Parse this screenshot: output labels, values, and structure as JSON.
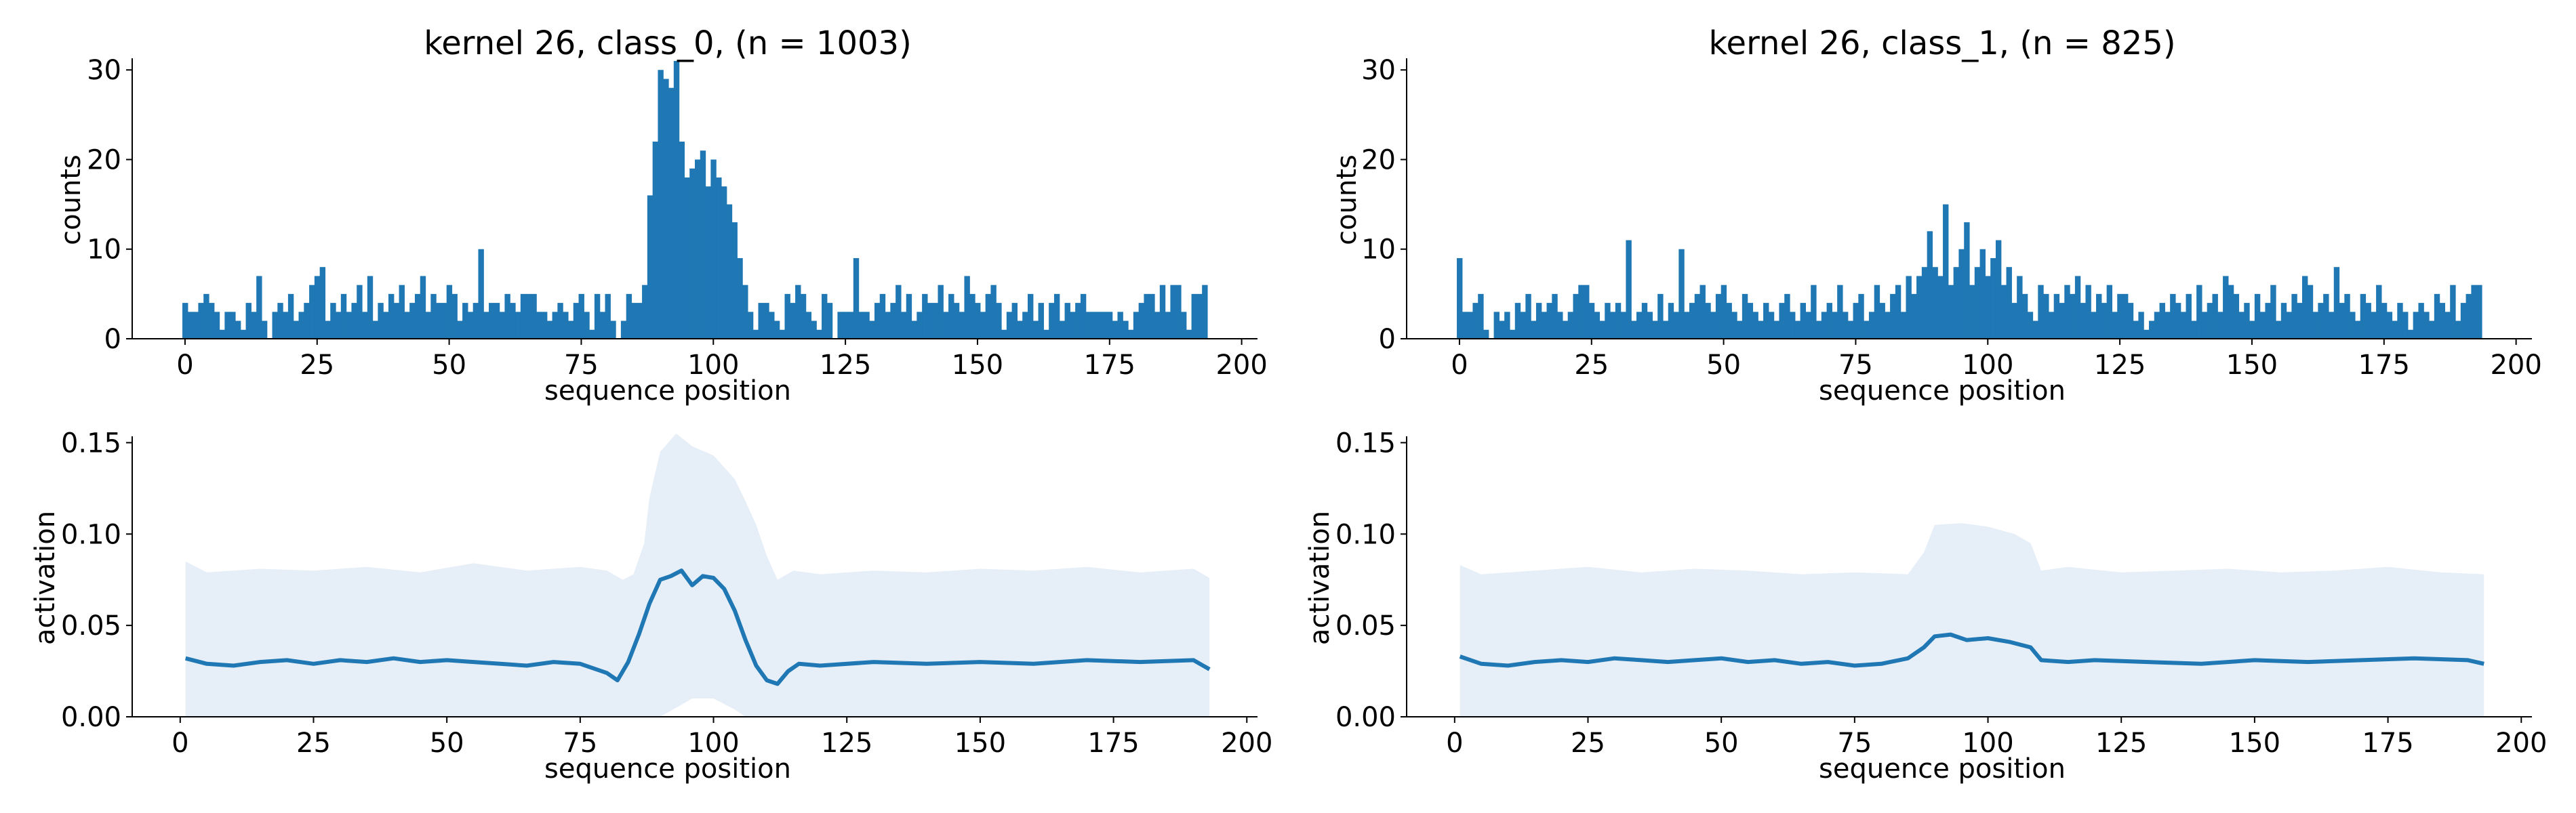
{
  "colors": {
    "accent": "#1f77b4",
    "band": "#dbe7f3"
  },
  "chart_data": [
    {
      "type": "bar",
      "title": "kernel 26, class_0, (n = 1003)",
      "xlabel": "sequence position",
      "ylabel": "counts",
      "xlim": [
        -10,
        203
      ],
      "ylim": [
        0,
        31
      ],
      "xticks": [
        "0",
        "25",
        "50",
        "75",
        "100",
        "125",
        "150",
        "175",
        "200"
      ],
      "yticks": [
        "0",
        "10",
        "20",
        "30"
      ],
      "x": [
        0,
        1,
        2,
        3,
        4,
        5,
        6,
        7,
        8,
        9,
        10,
        11,
        12,
        13,
        14,
        15,
        16,
        17,
        18,
        19,
        20,
        21,
        22,
        23,
        24,
        25,
        26,
        27,
        28,
        29,
        30,
        31,
        32,
        33,
        34,
        35,
        36,
        37,
        38,
        39,
        40,
        41,
        42,
        43,
        44,
        45,
        46,
        47,
        48,
        49,
        50,
        51,
        52,
        53,
        54,
        55,
        56,
        57,
        58,
        59,
        60,
        61,
        62,
        63,
        64,
        65,
        66,
        67,
        68,
        69,
        70,
        71,
        72,
        73,
        74,
        75,
        76,
        77,
        78,
        79,
        80,
        81,
        82,
        83,
        84,
        85,
        86,
        87,
        88,
        89,
        90,
        91,
        92,
        93,
        94,
        95,
        96,
        97,
        98,
        99,
        100,
        101,
        102,
        103,
        104,
        105,
        106,
        107,
        108,
        109,
        110,
        111,
        112,
        113,
        114,
        115,
        116,
        117,
        118,
        119,
        120,
        121,
        122,
        123,
        124,
        125,
        126,
        127,
        128,
        129,
        130,
        131,
        132,
        133,
        134,
        135,
        136,
        137,
        138,
        139,
        140,
        141,
        142,
        143,
        144,
        145,
        146,
        147,
        148,
        149,
        150,
        151,
        152,
        153,
        154,
        155,
        156,
        157,
        158,
        159,
        160,
        161,
        162,
        163,
        164,
        165,
        166,
        167,
        168,
        169,
        170,
        171,
        172,
        173,
        174,
        175,
        176,
        177,
        178,
        179,
        180,
        181,
        182,
        183,
        184,
        185,
        186,
        187,
        188,
        189,
        190,
        191,
        192,
        193
      ],
      "values": [
        4,
        3,
        3,
        4,
        5,
        4,
        3,
        1,
        3,
        3,
        2,
        1,
        4,
        3,
        7,
        2,
        0,
        3,
        4,
        3,
        5,
        2,
        3,
        4,
        6,
        7,
        8,
        2,
        4,
        3,
        5,
        3,
        4,
        6,
        3,
        7,
        2,
        4,
        3,
        5,
        4,
        6,
        3,
        4,
        5,
        7,
        3,
        5,
        4,
        4,
        6,
        5,
        2,
        4,
        3,
        4,
        10,
        3,
        4,
        4,
        3,
        5,
        4,
        3,
        5,
        5,
        5,
        3,
        3,
        2,
        3,
        4,
        3,
        2,
        4,
        5,
        3,
        1,
        5,
        3,
        5,
        2,
        0,
        2,
        5,
        4,
        4,
        6,
        16,
        22,
        30,
        29,
        28,
        31,
        22,
        18,
        19,
        20,
        21,
        17,
        20,
        18,
        17,
        15,
        13,
        9,
        6,
        3,
        1,
        4,
        4,
        3,
        2,
        1,
        5,
        4,
        6,
        5,
        3,
        2,
        1,
        5,
        4,
        0,
        3,
        3,
        3,
        9,
        3,
        3,
        2,
        4,
        5,
        3,
        4,
        6,
        3,
        5,
        2,
        3,
        5,
        4,
        4,
        6,
        3,
        5,
        4,
        3,
        7,
        5,
        4,
        3,
        5,
        6,
        4,
        1,
        3,
        4,
        2,
        3,
        5,
        2,
        4,
        1,
        4,
        5,
        2,
        4,
        3,
        4,
        5,
        3,
        3,
        3,
        3,
        3,
        2,
        3,
        2,
        1,
        3,
        4,
        5,
        5,
        3,
        6,
        3,
        6,
        6,
        3,
        1,
        5,
        5,
        6
      ]
    },
    {
      "type": "bar",
      "title": "kernel 26, class_1, (n = 825)",
      "xlabel": "sequence position",
      "ylabel": "counts",
      "xlim": [
        -10,
        203
      ],
      "ylim": [
        0,
        31
      ],
      "xticks": [
        "0",
        "25",
        "50",
        "75",
        "100",
        "125",
        "150",
        "175",
        "200"
      ],
      "yticks": [
        "0",
        "10",
        "20",
        "30"
      ],
      "x": [
        0,
        1,
        2,
        3,
        4,
        5,
        6,
        7,
        8,
        9,
        10,
        11,
        12,
        13,
        14,
        15,
        16,
        17,
        18,
        19,
        20,
        21,
        22,
        23,
        24,
        25,
        26,
        27,
        28,
        29,
        30,
        31,
        32,
        33,
        34,
        35,
        36,
        37,
        38,
        39,
        40,
        41,
        42,
        43,
        44,
        45,
        46,
        47,
        48,
        49,
        50,
        51,
        52,
        53,
        54,
        55,
        56,
        57,
        58,
        59,
        60,
        61,
        62,
        63,
        64,
        65,
        66,
        67,
        68,
        69,
        70,
        71,
        72,
        73,
        74,
        75,
        76,
        77,
        78,
        79,
        80,
        81,
        82,
        83,
        84,
        85,
        86,
        87,
        88,
        89,
        90,
        91,
        92,
        93,
        94,
        95,
        96,
        97,
        98,
        99,
        100,
        101,
        102,
        103,
        104,
        105,
        106,
        107,
        108,
        109,
        110,
        111,
        112,
        113,
        114,
        115,
        116,
        117,
        118,
        119,
        120,
        121,
        122,
        123,
        124,
        125,
        126,
        127,
        128,
        129,
        130,
        131,
        132,
        133,
        134,
        135,
        136,
        137,
        138,
        139,
        140,
        141,
        142,
        143,
        144,
        145,
        146,
        147,
        148,
        149,
        150,
        151,
        152,
        153,
        154,
        155,
        156,
        157,
        158,
        159,
        160,
        161,
        162,
        163,
        164,
        165,
        166,
        167,
        168,
        169,
        170,
        171,
        172,
        173,
        174,
        175,
        176,
        177,
        178,
        179,
        180,
        181,
        182,
        183,
        184,
        185,
        186,
        187,
        188,
        189,
        190,
        191,
        192,
        193
      ],
      "values": [
        9,
        3,
        3,
        4,
        5,
        1,
        0,
        3,
        2,
        3,
        1,
        4,
        3,
        5,
        2,
        4,
        3,
        4,
        5,
        3,
        2,
        3,
        5,
        6,
        6,
        4,
        3,
        2,
        4,
        3,
        4,
        3,
        11,
        2,
        3,
        4,
        3,
        2,
        5,
        2,
        4,
        3,
        10,
        3,
        4,
        5,
        6,
        4,
        3,
        5,
        6,
        4,
        3,
        2,
        5,
        4,
        3,
        2,
        4,
        3,
        2,
        4,
        5,
        3,
        2,
        4,
        3,
        6,
        2,
        3,
        4,
        3,
        6,
        3,
        2,
        4,
        5,
        2,
        3,
        6,
        4,
        3,
        5,
        6,
        3,
        7,
        5,
        7,
        8,
        12,
        8,
        7,
        15,
        6,
        8,
        10,
        13,
        6,
        8,
        10,
        7,
        9,
        11,
        6,
        8,
        4,
        7,
        5,
        3,
        2,
        6,
        5,
        3,
        5,
        4,
        6,
        5,
        7,
        4,
        6,
        3,
        5,
        4,
        6,
        3,
        5,
        5,
        4,
        2,
        3,
        1,
        2,
        3,
        4,
        3,
        5,
        4,
        3,
        5,
        2,
        6,
        3,
        4,
        5,
        3,
        7,
        6,
        5,
        3,
        4,
        2,
        5,
        3,
        4,
        6,
        2,
        4,
        3,
        5,
        4,
        7,
        6,
        3,
        4,
        5,
        3,
        8,
        4,
        5,
        3,
        2,
        5,
        4,
        3,
        6,
        4,
        3,
        2,
        4,
        3,
        1,
        3,
        4,
        3,
        2,
        5,
        4,
        3,
        6,
        2,
        4,
        5,
        6,
        6
      ]
    },
    {
      "type": "line",
      "xlabel": "sequence position",
      "ylabel": "activation",
      "xlim": [
        -9,
        202
      ],
      "ylim": [
        0,
        0.152
      ],
      "xticks": [
        "0",
        "25",
        "50",
        "75",
        "100",
        "125",
        "150",
        "175",
        "200"
      ],
      "yticks": [
        "0.00",
        "0.05",
        "0.10",
        "0.15"
      ],
      "band": {
        "x": [
          1,
          5,
          15,
          25,
          35,
          45,
          55,
          65,
          75,
          80,
          83,
          85,
          87,
          88,
          90,
          93,
          96,
          100,
          104,
          106,
          108,
          110,
          112,
          115,
          120,
          130,
          140,
          150,
          160,
          170,
          180,
          190,
          193
        ],
        "upper": [
          0.085,
          0.079,
          0.081,
          0.08,
          0.082,
          0.079,
          0.084,
          0.08,
          0.082,
          0.08,
          0.075,
          0.078,
          0.095,
          0.12,
          0.145,
          0.155,
          0.148,
          0.143,
          0.13,
          0.118,
          0.105,
          0.088,
          0.075,
          0.08,
          0.078,
          0.08,
          0.079,
          0.081,
          0.08,
          0.082,
          0.079,
          0.081,
          0.076
        ],
        "lower": [
          0,
          0,
          0,
          0,
          0,
          0,
          0,
          0,
          0,
          0,
          0,
          0,
          0,
          0,
          0,
          0.005,
          0.01,
          0.01,
          0.004,
          0,
          0,
          0,
          0,
          0,
          0,
          0,
          0,
          0,
          0,
          0,
          0,
          0,
          0
        ]
      },
      "series": [
        {
          "x": [
            1,
            5,
            10,
            15,
            20,
            25,
            30,
            35,
            40,
            45,
            50,
            55,
            60,
            65,
            70,
            75,
            80,
            82,
            84,
            86,
            88,
            90,
            92,
            94,
            96,
            98,
            100,
            102,
            104,
            106,
            108,
            110,
            112,
            114,
            116,
            120,
            130,
            140,
            150,
            160,
            170,
            180,
            190,
            193
          ],
          "values": [
            0.032,
            0.029,
            0.028,
            0.03,
            0.031,
            0.029,
            0.031,
            0.03,
            0.032,
            0.03,
            0.031,
            0.03,
            0.029,
            0.028,
            0.03,
            0.029,
            0.024,
            0.02,
            0.03,
            0.045,
            0.062,
            0.075,
            0.077,
            0.08,
            0.072,
            0.077,
            0.076,
            0.07,
            0.058,
            0.042,
            0.028,
            0.02,
            0.018,
            0.025,
            0.029,
            0.028,
            0.03,
            0.029,
            0.03,
            0.029,
            0.031,
            0.03,
            0.031,
            0.026
          ]
        }
      ]
    },
    {
      "type": "line",
      "xlabel": "sequence position",
      "ylabel": "activation",
      "xlim": [
        -9,
        202
      ],
      "ylim": [
        0,
        0.152
      ],
      "xticks": [
        "0",
        "25",
        "50",
        "75",
        "100",
        "125",
        "150",
        "175",
        "200"
      ],
      "yticks": [
        "0.00",
        "0.05",
        "0.10",
        "0.15"
      ],
      "band": {
        "x": [
          1,
          5,
          15,
          25,
          35,
          45,
          55,
          65,
          75,
          85,
          88,
          90,
          95,
          100,
          105,
          108,
          110,
          115,
          125,
          135,
          145,
          155,
          165,
          175,
          185,
          193
        ],
        "upper": [
          0.083,
          0.078,
          0.08,
          0.082,
          0.079,
          0.081,
          0.08,
          0.078,
          0.079,
          0.078,
          0.09,
          0.105,
          0.106,
          0.104,
          0.1,
          0.095,
          0.08,
          0.082,
          0.079,
          0.08,
          0.081,
          0.079,
          0.08,
          0.082,
          0.079,
          0.078
        ],
        "lower": [
          0,
          0,
          0,
          0,
          0,
          0,
          0,
          0,
          0,
          0,
          0,
          0,
          0,
          0,
          0,
          0,
          0,
          0,
          0,
          0,
          0,
          0,
          0,
          0,
          0,
          0
        ]
      },
      "series": [
        {
          "x": [
            1,
            5,
            10,
            15,
            20,
            25,
            30,
            35,
            40,
            45,
            50,
            55,
            60,
            65,
            70,
            75,
            80,
            85,
            88,
            90,
            93,
            96,
            100,
            104,
            108,
            110,
            115,
            120,
            130,
            140,
            150,
            160,
            170,
            180,
            190,
            193
          ],
          "values": [
            0.033,
            0.029,
            0.028,
            0.03,
            0.031,
            0.03,
            0.032,
            0.031,
            0.03,
            0.031,
            0.032,
            0.03,
            0.031,
            0.029,
            0.03,
            0.028,
            0.029,
            0.032,
            0.038,
            0.044,
            0.045,
            0.042,
            0.043,
            0.041,
            0.038,
            0.031,
            0.03,
            0.031,
            0.03,
            0.029,
            0.031,
            0.03,
            0.031,
            0.032,
            0.031,
            0.029
          ]
        }
      ]
    }
  ]
}
